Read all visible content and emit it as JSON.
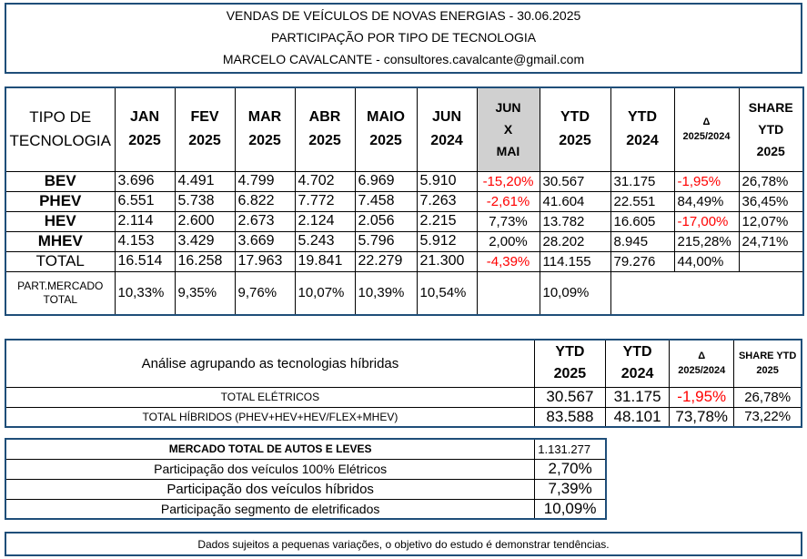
{
  "header": {
    "line1": "VENDAS DE VEÍCULOS DE NOVAS ENERGIAS - 30.06.2025",
    "line2": "PARTICIPAÇÃO POR TIPO DE TECNOLOGIA",
    "line3": "MARCELO CAVALCANTE - consultores.cavalcante@gmail.com"
  },
  "main": {
    "headers": {
      "tipo_1": "TIPO DE",
      "tipo_2": "TECNOLOGIA",
      "jan_1": "JAN",
      "jan_2": "2025",
      "fev_1": "FEV",
      "fev_2": "2025",
      "mar_1": "MAR",
      "mar_2": "2025",
      "abr_1": "ABR",
      "abr_2": "2025",
      "mai_1": "MAIO",
      "mai_2": "2025",
      "jun_1": "JUN",
      "jun_2": "2024",
      "jx_1": "JUN",
      "jx_2": "X",
      "jx_3": "MAI",
      "ytd25_1": "YTD",
      "ytd25_2": "2025",
      "ytd24_1": "YTD",
      "ytd24_2": "2024",
      "delta_1": "Δ",
      "delta_2": "2025/2024",
      "share_1": "SHARE",
      "share_2": "YTD",
      "share_3": "2025"
    },
    "rows": [
      {
        "label": "BEV",
        "jan": "3.696",
        "fev": "4.491",
        "mar": "4.799",
        "abr": "4.702",
        "mai": "6.969",
        "jun24": "5.910",
        "jx": "-15,20%",
        "ytd25": "30.567",
        "ytd24": "31.175",
        "delta": "-1,95%",
        "share": "26,78%"
      },
      {
        "label": "PHEV",
        "jan": "6.551",
        "fev": "5.738",
        "mar": "6.822",
        "abr": "7.772",
        "mai": "7.458",
        "jun24": "7.263",
        "jx": "-2,61%",
        "ytd25": "41.604",
        "ytd24": "22.551",
        "delta": "84,49%",
        "share": "36,45%"
      },
      {
        "label": "HEV",
        "jan": "2.114",
        "fev": "2.600",
        "mar": "2.673",
        "abr": "2.124",
        "mai": "2.056",
        "jun24": "2.215",
        "jx": "7,73%",
        "ytd25": "13.782",
        "ytd24": "16.605",
        "delta": "-17,00%",
        "share": "12,07%"
      },
      {
        "label": "MHEV",
        "jan": "4.153",
        "fev": "3.429",
        "mar": "3.669",
        "abr": "5.243",
        "mai": "5.796",
        "jun24": "5.912",
        "jx": "2,00%",
        "ytd25": "28.202",
        "ytd24": "8.945",
        "delta": "215,28%",
        "share": "24,71%"
      }
    ],
    "total": {
      "label": "TOTAL",
      "jan": "16.514",
      "fev": "16.258",
      "mar": "17.963",
      "abr": "19.841",
      "mai": "22.279",
      "jun24": "21.300",
      "jx": "-4,39%",
      "ytd25": "114.155",
      "ytd24": "79.276",
      "delta": "44,00%"
    },
    "part": {
      "label_1": "PART.MERCADO",
      "label_2": "TOTAL",
      "jan": "10,33%",
      "fev": "9,35%",
      "mar": "9,76%",
      "abr": "10,07%",
      "mai": "10,39%",
      "jun24": "10,54%",
      "ytd25": "10,09%"
    }
  },
  "hybrid_analysis": {
    "title": "Análise agrupando as tecnologias híbridas",
    "ytd25_1": "YTD",
    "ytd25_2": "2025",
    "ytd24_1": "YTD",
    "ytd24_2": "2024",
    "delta_1": "Δ",
    "delta_2": "2025/2024",
    "share_1": "SHARE YTD",
    "share_2": "2025",
    "rows": [
      {
        "label": "TOTAL ELÉTRICOS",
        "ytd25": "30.567",
        "ytd24": "31.175",
        "delta": "-1,95%",
        "share": "26,78%"
      },
      {
        "label": "TOTAL HÍBRIDOS (PHEV+HEV+HEV/FLEX+MHEV)",
        "ytd25": "83.588",
        "ytd24": "48.101",
        "delta": "73,78%",
        "share": "73,22%"
      }
    ]
  },
  "market": {
    "title": "MERCADO TOTAL DE AUTOS E LEVES",
    "total": "1.131.277",
    "rows": [
      {
        "label": "Participação dos veículos 100% Elétricos",
        "value": "2,70%"
      },
      {
        "label": "Participação dos veículos híbridos",
        "value": "7,39%"
      },
      {
        "label": "Participação segmento de eletrificados",
        "value": "10,09%"
      }
    ]
  },
  "footer": "Dados sujeitos a pequenas variações, o objetivo do estudo é demonstrar tendências.",
  "colors": {
    "border": "#1f4e79",
    "negative": "#ff0000",
    "highlight_header": "#d0d0d0"
  }
}
